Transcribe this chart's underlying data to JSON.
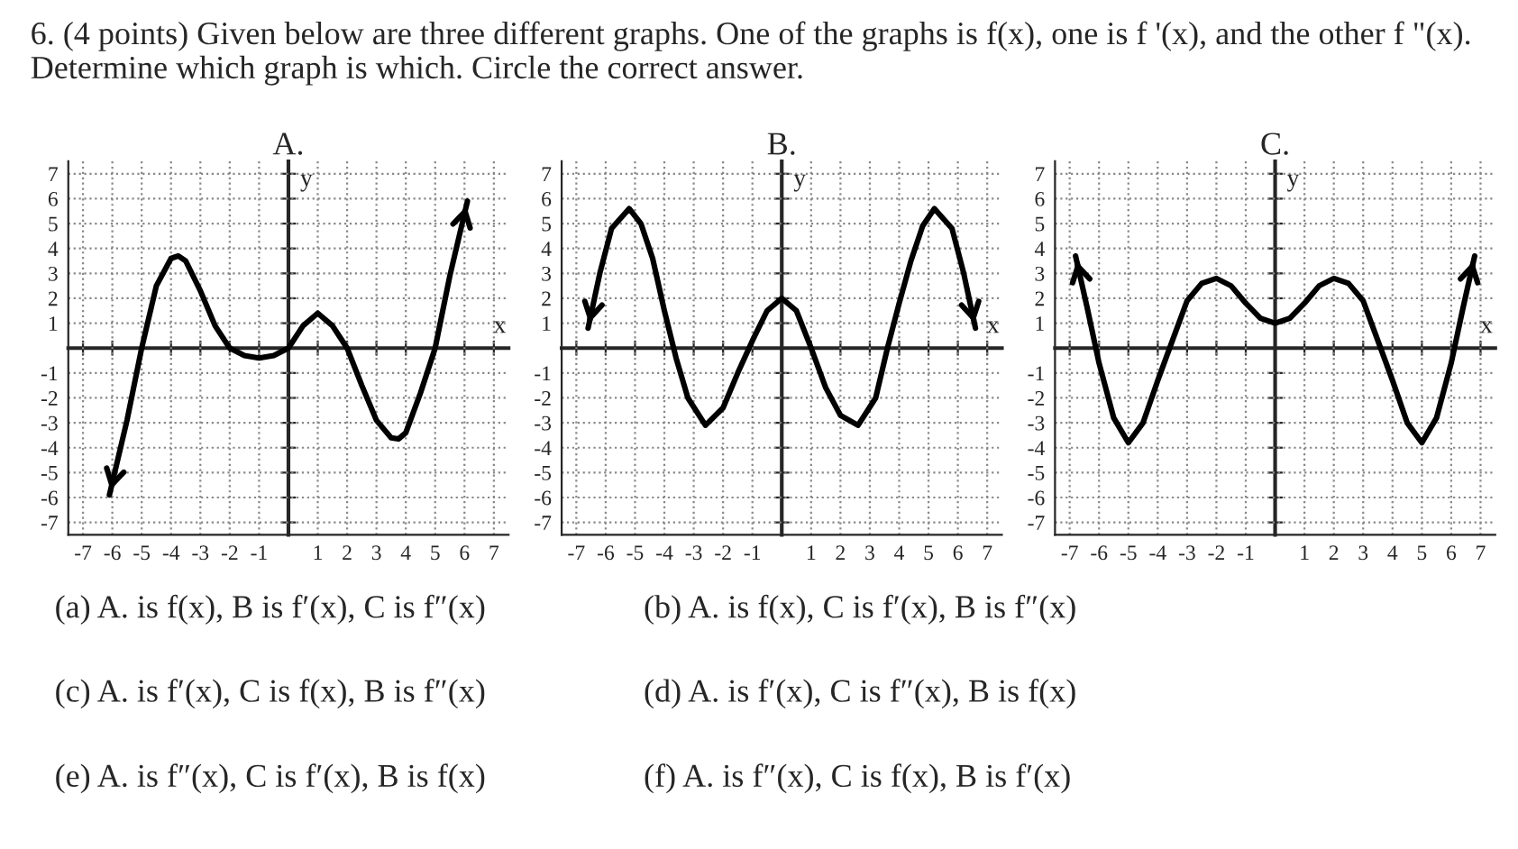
{
  "chart_data": [
    {
      "type": "line",
      "title": "A.",
      "xlabel": "x",
      "ylabel": "y",
      "xlim": [
        -7.5,
        7.5
      ],
      "ylim": [
        -7.5,
        7.5
      ],
      "xticks": [
        -7,
        -6,
        -5,
        -4,
        -3,
        -2,
        -1,
        1,
        2,
        3,
        4,
        5,
        6,
        7
      ],
      "yticks": [
        -7,
        -6,
        -5,
        -4,
        -3,
        -2,
        -1,
        1,
        2,
        3,
        4,
        5,
        6,
        7
      ],
      "grid": true,
      "series": [
        {
          "color": "#000000",
          "x": [
            -6.1,
            -5.5,
            -5,
            -4.5,
            -4,
            -3.75,
            -3.5,
            -3,
            -2.5,
            -2,
            -1.5,
            -1,
            -0.5,
            0,
            0.5,
            1,
            1.5,
            2,
            2.5,
            3,
            3.5,
            3.75,
            4,
            4.5,
            5,
            5.5,
            6.1
          ],
          "values": [
            -5.9,
            -2.9,
            0,
            2.5,
            3.6,
            3.7,
            3.5,
            2.3,
            0.9,
            0,
            -0.3,
            -0.4,
            -0.3,
            0,
            0.9,
            1.4,
            0.9,
            0,
            -1.5,
            -2.9,
            -3.6,
            -3.65,
            -3.4,
            -1.8,
            0,
            2.9,
            5.9
          ]
        }
      ],
      "annotations": [
        "6. (4 points) Given below are three different graphs. One of the graphs is f(x), one is f '(x), and the other f \"(x). Determine which graph is which. Circle the correct answer.",
        "(a) A. is f(x), B is f′(x), C is f″(x)",
        "(b) A. is f(x), C is f′(x), B is f″(x)",
        "(c) A. is f′(x), C is f(x), B is f″(x)",
        "(d) A. is f′(x), C is f″(x), B is f(x)",
        "(e) A. is f″(x), C is f′(x), B is f(x)",
        "(f) A. is f″(x), C is f(x), B is f′(x)"
      ]
    },
    {
      "type": "line",
      "title": "B.",
      "xlabel": "x",
      "ylabel": "y",
      "xlim": [
        -7.5,
        7.5
      ],
      "ylim": [
        -7.5,
        7.5
      ],
      "xticks": [
        -7,
        -6,
        -5,
        -4,
        -3,
        -2,
        -1,
        1,
        2,
        3,
        4,
        5,
        6,
        7
      ],
      "yticks": [
        -7,
        -6,
        -5,
        -4,
        -3,
        -2,
        -1,
        1,
        2,
        3,
        4,
        5,
        6,
        7
      ],
      "grid": true,
      "series": [
        {
          "color": "#000000",
          "x": [
            -6.6,
            -6.2,
            -5.8,
            -5.2,
            -4.8,
            -4.4,
            -4,
            -3.6,
            -3.2,
            -2.6,
            -2,
            -1.5,
            -1,
            -0.5,
            0,
            0.5,
            1,
            1.5,
            2,
            2.6,
            3.2,
            3.6,
            4,
            4.4,
            4.8,
            5.2,
            5.8,
            6.2,
            6.6
          ],
          "values": [
            0.8,
            3,
            4.8,
            5.6,
            5,
            3.6,
            1.5,
            -0.4,
            -2,
            -3.1,
            -2.4,
            -1,
            0.3,
            1.5,
            2,
            1.5,
            0,
            -1.6,
            -2.7,
            -3.1,
            -2,
            0,
            1.8,
            3.5,
            4.9,
            5.6,
            4.8,
            3,
            0.8
          ]
        }
      ]
    },
    {
      "type": "line",
      "title": "C.",
      "xlabel": "x",
      "ylabel": "y",
      "xlim": [
        -7.5,
        7.5
      ],
      "ylim": [
        -7.5,
        7.5
      ],
      "xticks": [
        -7,
        -6,
        -5,
        -4,
        -3,
        -2,
        -1,
        1,
        2,
        3,
        4,
        5,
        6,
        7
      ],
      "yticks": [
        -7,
        -6,
        -5,
        -4,
        -3,
        -2,
        -1,
        1,
        2,
        3,
        4,
        5,
        6,
        7
      ],
      "grid": true,
      "series": [
        {
          "color": "#000000",
          "x": [
            -6.8,
            -6.4,
            -6,
            -5.5,
            -5,
            -4.5,
            -4,
            -3.5,
            -3,
            -2.5,
            -2,
            -1.5,
            -1,
            -0.5,
            0,
            0.5,
            1,
            1.5,
            2,
            2.5,
            3,
            3.5,
            4,
            4.5,
            5,
            5.5,
            6,
            6.4,
            6.8
          ],
          "values": [
            3.7,
            1.6,
            -0.6,
            -2.8,
            -3.8,
            -3,
            -1.3,
            0.3,
            1.9,
            2.6,
            2.8,
            2.5,
            1.8,
            1.2,
            1.0,
            1.2,
            1.8,
            2.5,
            2.8,
            2.6,
            1.9,
            0.3,
            -1.3,
            -3,
            -3.8,
            -2.8,
            -0.6,
            1.6,
            3.7
          ]
        }
      ]
    }
  ]
}
